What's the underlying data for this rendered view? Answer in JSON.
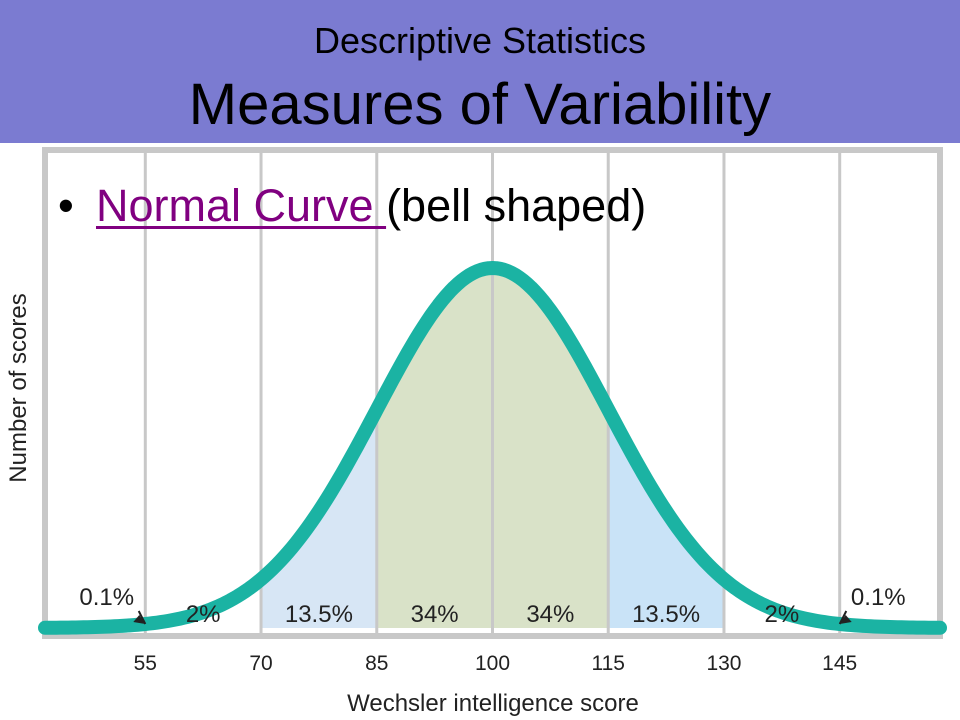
{
  "header": {
    "subtitle": "Descriptive Statistics",
    "title": "Measures of Variability",
    "background": "#7b7bd1"
  },
  "bullet": {
    "link_text": "Normal Curve ",
    "text": "(bell shaped)",
    "link_color": "#800080"
  },
  "chart_data": {
    "type": "area",
    "xlabel": "Wechsler intelligence score",
    "ylabel": "Number of scores",
    "mean": 100,
    "sd": 15,
    "xlim": [
      42,
      158
    ],
    "ticks": [
      55,
      70,
      85,
      100,
      115,
      130,
      145
    ],
    "grid": true,
    "curve_color": "#1bb3a3",
    "regions": [
      {
        "from": 70,
        "to": 85,
        "color": "#d7e6f5"
      },
      {
        "from": 85,
        "to": 115,
        "color": "#d9e2c8"
      },
      {
        "from": 115,
        "to": 130,
        "color": "#c9e3f7"
      }
    ],
    "percent_labels": [
      {
        "x": 50,
        "text": "0.1%",
        "arrow_to": 55
      },
      {
        "x": 62.5,
        "text": "2%"
      },
      {
        "x": 77.5,
        "text": "13.5%"
      },
      {
        "x": 92.5,
        "text": "34%"
      },
      {
        "x": 107.5,
        "text": "34%"
      },
      {
        "x": 122.5,
        "text": "13.5%"
      },
      {
        "x": 137.5,
        "text": "2%"
      },
      {
        "x": 150,
        "text": "0.1%",
        "arrow_to": 145
      }
    ]
  }
}
